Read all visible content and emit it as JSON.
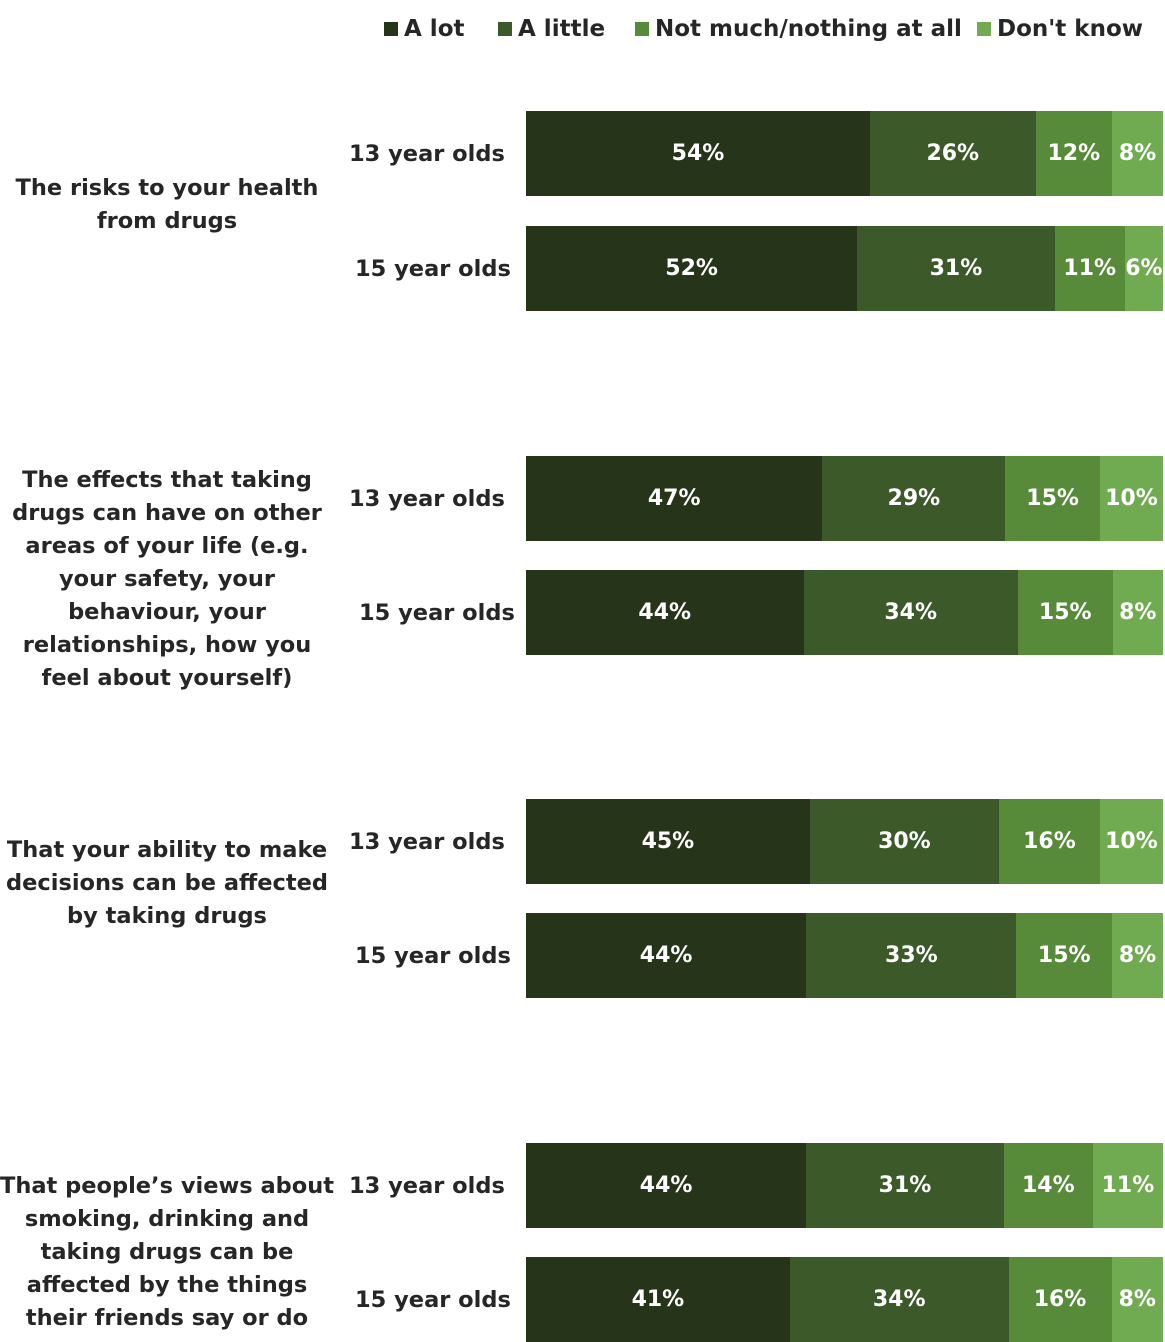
{
  "chart_data": {
    "type": "bar",
    "orientation": "horizontal",
    "stacked": true,
    "percent": true,
    "legend_position": "top",
    "legend": [
      "A lot",
      "A little",
      "Not much/nothing at all",
      "Don't know"
    ],
    "colors": [
      "#263419",
      "#3c5929",
      "#578b3a",
      "#71ab51"
    ],
    "groups": [
      {
        "title": "The risks to your health from drugs",
        "rows": [
          {
            "label": "13 year olds",
            "values": [
              54,
              26,
              12,
              8
            ]
          },
          {
            "label": "15 year olds",
            "values": [
              52,
              31,
              11,
              6
            ]
          }
        ]
      },
      {
        "title": "The effects that taking drugs can have on other areas of your life (e.g. your safety, your behaviour, your relationships, how you feel about yourself)",
        "rows": [
          {
            "label": "13 year olds",
            "values": [
              47,
              29,
              15,
              10
            ]
          },
          {
            "label": "15 year olds",
            "values": [
              44,
              34,
              15,
              8
            ]
          }
        ]
      },
      {
        "title": "That your ability to  make decisions can be affected by taking drugs",
        "rows": [
          {
            "label": "13 year olds",
            "values": [
              45,
              30,
              16,
              10
            ]
          },
          {
            "label": "15 year olds",
            "values": [
              44,
              33,
              15,
              8
            ]
          }
        ]
      },
      {
        "title": "That people’s views about smoking, drinking and taking drugs can be affected by the things their friends say or do",
        "rows": [
          {
            "label": "13 year olds",
            "values": [
              44,
              31,
              14,
              11
            ]
          },
          {
            "label": "15 year olds",
            "values": [
              41,
              34,
              16,
              8
            ]
          }
        ]
      }
    ]
  }
}
